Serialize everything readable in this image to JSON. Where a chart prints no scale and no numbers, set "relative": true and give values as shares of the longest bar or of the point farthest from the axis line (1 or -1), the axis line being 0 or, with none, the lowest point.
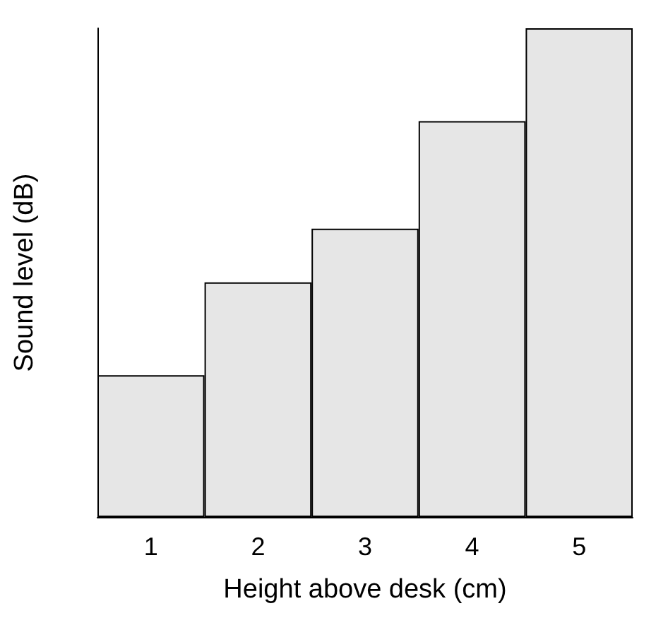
{
  "chart_data": {
    "type": "bar",
    "relative": true,
    "xlabel": "Height above desk (cm)",
    "ylabel": "Sound level (dB)",
    "categories": [
      "1",
      "2",
      "3",
      "4",
      "5"
    ],
    "values": [
      0.29,
      0.48,
      0.59,
      0.81,
      1
    ],
    "color": "#e6e6e6"
  }
}
